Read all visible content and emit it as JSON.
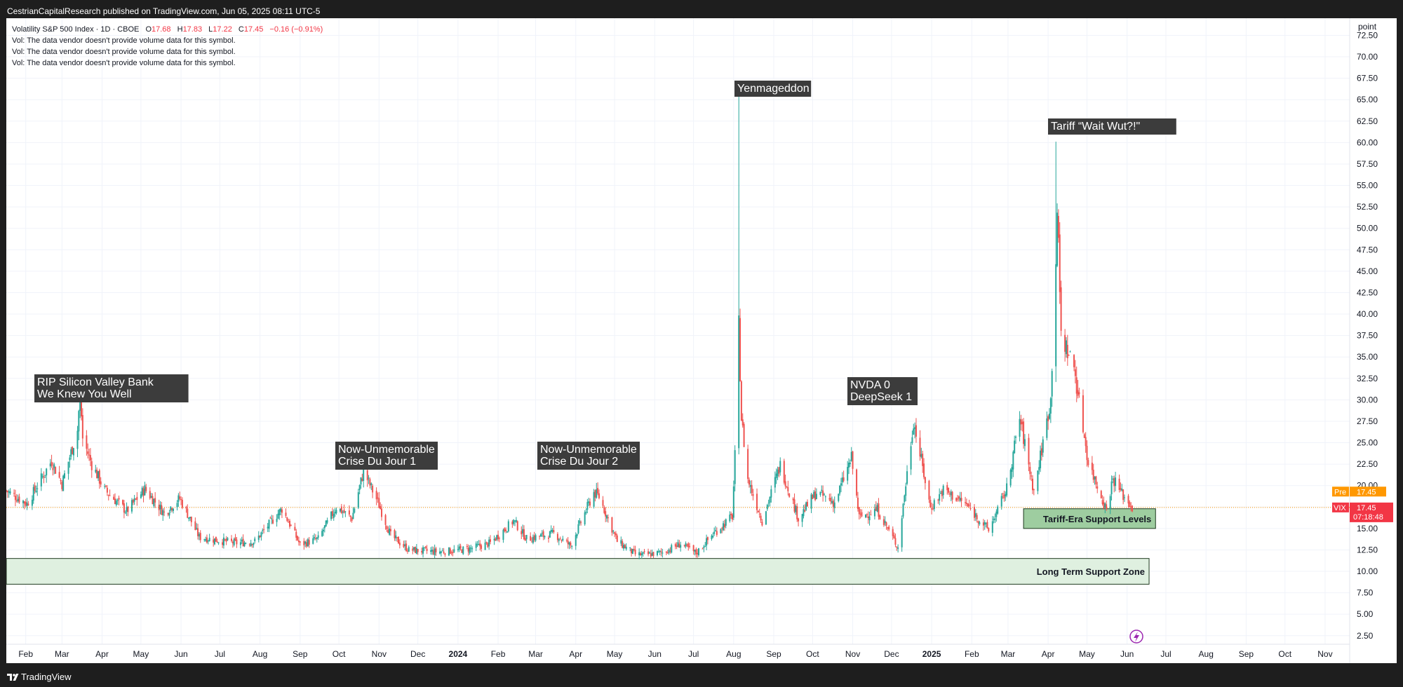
{
  "header": {
    "published_text": "CestrianCapitalResearch published on TradingView.com, Jun 05, 2025 08:11 UTC-5"
  },
  "legend": {
    "symbol": "Volatility S&P 500 Index · 1D · CBOE",
    "open_label": "O",
    "open": "17.68",
    "high_label": "H",
    "high": "17.83",
    "low_label": "L",
    "low": "17.22",
    "close_label": "C",
    "close": "17.45",
    "change": "−0.16 (−0.91%)",
    "vol_lines": [
      "Vol: The data vendor doesn't provide volume data for this symbol.",
      "Vol: The data vendor doesn't provide volume data for this symbol.",
      "Vol: The data vendor doesn't provide volume data for this symbol."
    ]
  },
  "price_scale": {
    "unit_label": "point",
    "ticks": [
      "72.50",
      "70.00",
      "67.50",
      "65.00",
      "62.50",
      "60.00",
      "57.50",
      "55.00",
      "52.50",
      "50.00",
      "47.50",
      "45.00",
      "42.50",
      "40.00",
      "37.50",
      "35.00",
      "32.50",
      "30.00",
      "27.50",
      "25.00",
      "22.50",
      "20.00",
      "17.50",
      "15.00",
      "12.50",
      "10.00",
      "7.50",
      "5.00",
      "2.50"
    ],
    "pre_label": "Pre",
    "pre_value": "17.45",
    "vix_label": "VIX",
    "vix_value": "17.45",
    "countdown": "07:18:48"
  },
  "time_axis": {
    "labels": [
      "Feb",
      "Mar",
      "Apr",
      "May",
      "Jun",
      "Jul",
      "Aug",
      "Sep",
      "Oct",
      "Nov",
      "Dec",
      "2024",
      "Feb",
      "Mar",
      "Apr",
      "May",
      "Jun",
      "Jul",
      "Aug",
      "Sep",
      "Oct",
      "Nov",
      "Dec",
      "2025",
      "Feb",
      "Mar",
      "Apr",
      "May",
      "Jun",
      "Jul",
      "Aug",
      "Sep",
      "Oct",
      "Nov"
    ]
  },
  "annotations": [
    {
      "lines": [
        "RIP Silicon Valley Bank",
        "We Knew You Well"
      ]
    },
    {
      "lines": [
        "Now-Unmemorable",
        "Crise Du Jour 1"
      ]
    },
    {
      "lines": [
        "Now-Unmemorable",
        "Crise Du Jour 2"
      ]
    },
    {
      "lines": [
        "Yenmageddon"
      ]
    },
    {
      "lines": [
        "NVDA 0",
        "DeepSeek 1"
      ]
    },
    {
      "lines": [
        "Tariff “Wait Wut?!\""
      ]
    }
  ],
  "zones": [
    {
      "label": "Long Term Support Zone",
      "low": 8.5,
      "high": 11.5,
      "start": "2023-01-17",
      "end": "2025-06-18",
      "fill": "#dff0e0"
    },
    {
      "label": "Tariff-Era Support Levels",
      "low": 15.0,
      "high": 17.3,
      "start": "2025-03-13",
      "end": "2025-06-23",
      "fill": "#9ecda0"
    }
  ],
  "footer": {
    "brand": "TradingView"
  },
  "colors": {
    "up": "#26a69a",
    "down": "#ef5350",
    "background": "#ffffff",
    "frame": "#1e1e1e",
    "annotation_bg": "#3c3c3c",
    "price_line": "#ff9800"
  },
  "chart_data": {
    "type": "candlestick",
    "symbol": "VIX",
    "interval": "1D",
    "ylim": [
      1.5,
      74.5
    ],
    "x_range": [
      "2023-01-17",
      "2025-11-20"
    ],
    "grid": true,
    "current_price": 17.45,
    "series": [
      {
        "x": "2023-01-17",
        "y": 19.4
      },
      {
        "x": "2023-02-02",
        "y": 17.9
      },
      {
        "x": "2023-02-21",
        "y": 22.9
      },
      {
        "x": "2023-03-01",
        "y": 20.2
      },
      {
        "x": "2023-03-13",
        "y": 26.5
      },
      {
        "x": "2023-03-15",
        "y": 30.8
      },
      {
        "x": "2023-03-17",
        "y": 25.5
      },
      {
        "x": "2023-03-24",
        "y": 22.5
      },
      {
        "x": "2023-04-03",
        "y": 19.5
      },
      {
        "x": "2023-04-20",
        "y": 17.0
      },
      {
        "x": "2023-05-04",
        "y": 19.6
      },
      {
        "x": "2023-05-19",
        "y": 16.8
      },
      {
        "x": "2023-05-31",
        "y": 18.5
      },
      {
        "x": "2023-06-15",
        "y": 14.0
      },
      {
        "x": "2023-06-30",
        "y": 13.6
      },
      {
        "x": "2023-07-14",
        "y": 13.3
      },
      {
        "x": "2023-07-28",
        "y": 13.5
      },
      {
        "x": "2023-08-18",
        "y": 17.3
      },
      {
        "x": "2023-09-01",
        "y": 13.1
      },
      {
        "x": "2023-09-15",
        "y": 13.8
      },
      {
        "x": "2023-09-29",
        "y": 17.5
      },
      {
        "x": "2023-10-11",
        "y": 16.2
      },
      {
        "x": "2023-10-20",
        "y": 21.7
      },
      {
        "x": "2023-10-31",
        "y": 18.1
      },
      {
        "x": "2023-11-10",
        "y": 14.2
      },
      {
        "x": "2023-11-24",
        "y": 12.5
      },
      {
        "x": "2023-12-15",
        "y": 12.3
      },
      {
        "x": "2023-12-29",
        "y": 12.4
      },
      {
        "x": "2024-01-12",
        "y": 12.7
      },
      {
        "x": "2024-01-26",
        "y": 13.3
      },
      {
        "x": "2024-02-13",
        "y": 15.9
      },
      {
        "x": "2024-02-23",
        "y": 13.8
      },
      {
        "x": "2024-03-15",
        "y": 14.4
      },
      {
        "x": "2024-03-28",
        "y": 13.0
      },
      {
        "x": "2024-04-15",
        "y": 19.2
      },
      {
        "x": "2024-04-19",
        "y": 18.7
      },
      {
        "x": "2024-05-03",
        "y": 13.5
      },
      {
        "x": "2024-05-17",
        "y": 12.0
      },
      {
        "x": "2024-05-24",
        "y": 11.9
      },
      {
        "x": "2024-06-07",
        "y": 12.2
      },
      {
        "x": "2024-06-21",
        "y": 13.2
      },
      {
        "x": "2024-07-03",
        "y": 12.1
      },
      {
        "x": "2024-07-17",
        "y": 14.5
      },
      {
        "x": "2024-07-31",
        "y": 16.4
      },
      {
        "x": "2024-08-02",
        "y": 23.4
      },
      {
        "x": "2024-08-05",
        "y": 38.6
      },
      {
        "x": "2024-08-07",
        "y": 27.9
      },
      {
        "x": "2024-08-12",
        "y": 20.7
      },
      {
        "x": "2024-08-23",
        "y": 15.9
      },
      {
        "x": "2024-09-06",
        "y": 22.4
      },
      {
        "x": "2024-09-20",
        "y": 16.2
      },
      {
        "x": "2024-10-04",
        "y": 19.2
      },
      {
        "x": "2024-10-18",
        "y": 18.0
      },
      {
        "x": "2024-10-31",
        "y": 23.2
      },
      {
        "x": "2024-11-06",
        "y": 16.3
      },
      {
        "x": "2024-11-20",
        "y": 17.2
      },
      {
        "x": "2024-12-06",
        "y": 12.8
      },
      {
        "x": "2024-12-18",
        "y": 27.6
      },
      {
        "x": "2024-12-31",
        "y": 17.4
      },
      {
        "x": "2025-01-10",
        "y": 19.5
      },
      {
        "x": "2025-01-27",
        "y": 17.9
      },
      {
        "x": "2025-02-14",
        "y": 14.8
      },
      {
        "x": "2025-02-28",
        "y": 19.6
      },
      {
        "x": "2025-03-10",
        "y": 27.9
      },
      {
        "x": "2025-03-21",
        "y": 19.3
      },
      {
        "x": "2025-04-03",
        "y": 30.0
      },
      {
        "x": "2025-04-07",
        "y": 46.9
      },
      {
        "x": "2025-04-08",
        "y": 52.3
      },
      {
        "x": "2025-04-11",
        "y": 37.6
      },
      {
        "x": "2025-04-21",
        "y": 33.8
      },
      {
        "x": "2025-05-02",
        "y": 22.7
      },
      {
        "x": "2025-05-16",
        "y": 17.2
      },
      {
        "x": "2025-05-21",
        "y": 20.9
      },
      {
        "x": "2025-05-30",
        "y": 18.6
      },
      {
        "x": "2025-06-05",
        "y": 17.45
      }
    ],
    "spikes": [
      {
        "x": "2024-08-05",
        "high": 65.7
      },
      {
        "x": "2025-04-07",
        "high": 60.1
      }
    ]
  }
}
